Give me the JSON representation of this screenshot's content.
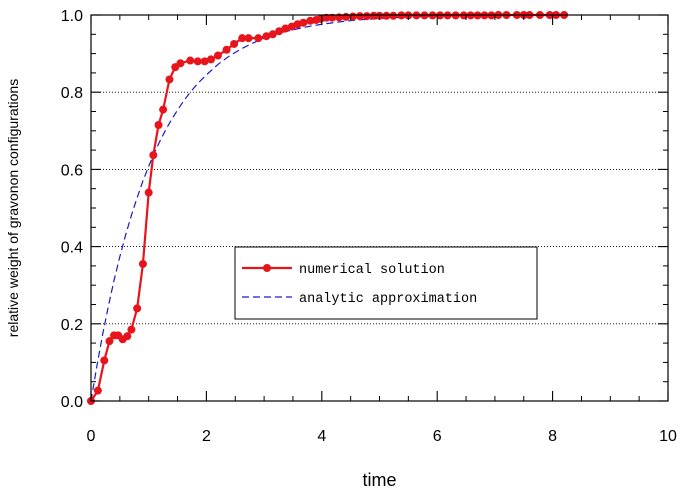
{
  "chart_data": {
    "type": "line",
    "title": "",
    "xlabel": "time",
    "ylabel": "relative weight of gravonon configurations",
    "xlim": [
      0,
      10
    ],
    "ylim": [
      0,
      1.0
    ],
    "x_ticks": [
      "0",
      "2",
      "4",
      "6",
      "8",
      "10"
    ],
    "y_ticks": [
      "0.0",
      "0.2",
      "0.4",
      "0.6",
      "0.8",
      "1.0"
    ],
    "grid": {
      "horizontal": true,
      "vertical": false,
      "style": "dotted"
    },
    "legend_position": "center-right",
    "series": [
      {
        "name": "numerical solution",
        "color": "#e8141b",
        "style": "solid-with-markers",
        "x": [
          0,
          0.12,
          0.23,
          0.32,
          0.4,
          0.47,
          0.55,
          0.63,
          0.7,
          0.8,
          0.9,
          1.0,
          1.08,
          1.17,
          1.25,
          1.36,
          1.46,
          1.55,
          1.72,
          1.85,
          1.97,
          2.08,
          2.2,
          2.35,
          2.48,
          2.62,
          2.73,
          2.9,
          3.04,
          3.15,
          3.26,
          3.37,
          3.48,
          3.58,
          3.68,
          3.8,
          3.9,
          3.98,
          4.08,
          4.18,
          4.3,
          4.42,
          4.54,
          4.66,
          4.78,
          4.9,
          5.0,
          5.12,
          5.24,
          5.38,
          5.5,
          5.64,
          5.78,
          5.92,
          6.05,
          6.18,
          6.32,
          6.46,
          6.58,
          6.7,
          6.82,
          6.94,
          7.06,
          7.2,
          7.38,
          7.5,
          7.6,
          7.78,
          7.95,
          8.06,
          8.2
        ],
        "y": [
          0.0,
          0.027,
          0.105,
          0.155,
          0.17,
          0.17,
          0.16,
          0.168,
          0.185,
          0.24,
          0.355,
          0.54,
          0.637,
          0.715,
          0.755,
          0.833,
          0.865,
          0.875,
          0.882,
          0.88,
          0.88,
          0.885,
          0.895,
          0.91,
          0.925,
          0.94,
          0.94,
          0.94,
          0.945,
          0.95,
          0.958,
          0.965,
          0.97,
          0.976,
          0.98,
          0.985,
          0.987,
          0.99,
          0.993,
          0.993,
          0.994,
          0.995,
          0.996,
          0.997,
          0.997,
          0.998,
          0.998,
          0.998,
          0.998,
          0.999,
          0.999,
          0.999,
          0.999,
          0.999,
          0.999,
          0.999,
          0.999,
          0.999,
          0.999,
          0.999,
          0.999,
          0.999,
          1.0,
          1.0,
          1.0,
          1.0,
          1.0,
          1.0,
          1.0,
          1.0,
          1.0
        ]
      },
      {
        "name": "analytic approximation",
        "color": "#1a1ac8",
        "style": "dashed",
        "x": [
          0,
          0.1,
          0.2,
          0.3,
          0.4,
          0.5,
          0.6,
          0.7,
          0.8,
          0.9,
          1.0,
          1.1,
          1.2,
          1.3,
          1.4,
          1.5,
          1.6,
          1.7,
          1.8,
          1.9,
          2.0,
          2.2,
          2.4,
          2.6,
          2.8,
          3.0,
          3.2,
          3.4,
          3.6,
          3.8,
          4.0,
          4.3,
          4.6,
          5.0,
          5.5,
          6.0,
          6.5,
          7.0,
          7.5,
          8.0,
          8.2
        ],
        "y": [
          0.0,
          0.089,
          0.171,
          0.245,
          0.313,
          0.374,
          0.43,
          0.481,
          0.527,
          0.57,
          0.608,
          0.643,
          0.675,
          0.704,
          0.73,
          0.754,
          0.776,
          0.796,
          0.814,
          0.83,
          0.845,
          0.872,
          0.894,
          0.912,
          0.927,
          0.94,
          0.95,
          0.958,
          0.965,
          0.971,
          0.976,
          0.982,
          0.987,
          0.991,
          0.995,
          0.997,
          0.998,
          0.999,
          0.9995,
          0.9998,
          0.9999
        ]
      }
    ]
  }
}
